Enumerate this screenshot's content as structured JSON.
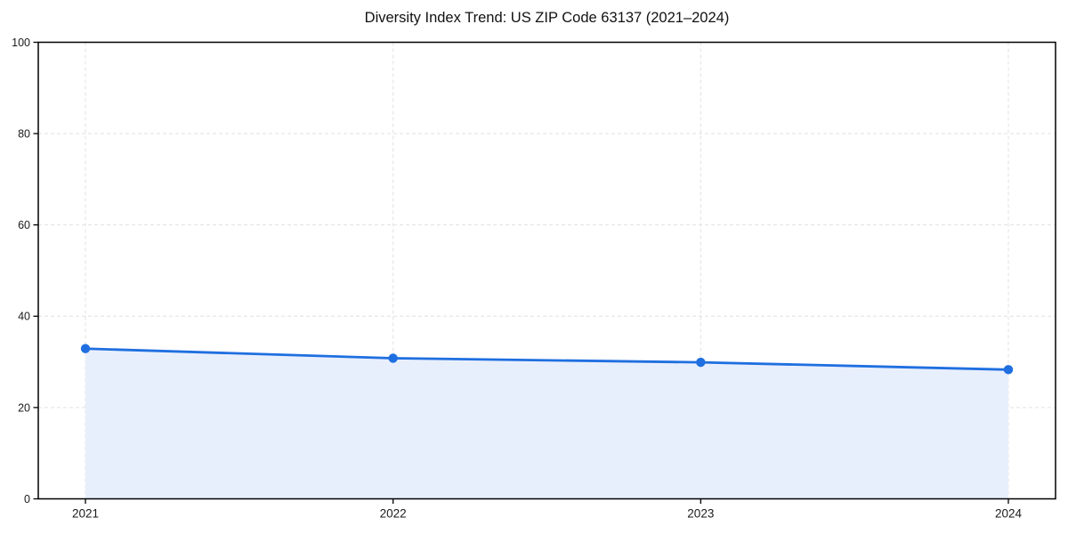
{
  "chart_data": {
    "type": "area",
    "title": "Diversity Index Trend: US ZIP Code 63137 (2021–2024)",
    "categories": [
      "2021",
      "2022",
      "2023",
      "2024"
    ],
    "values": [
      32.9,
      30.8,
      29.9,
      28.3
    ],
    "xlabel": "",
    "ylabel": "",
    "ylim": [
      0,
      100
    ],
    "yticks": [
      0,
      20,
      40,
      60,
      80,
      100
    ],
    "grid": "both-dashed",
    "legend": "none",
    "frame": "full-box",
    "colors": {
      "line": "#1f6fe0",
      "marker": "#1f6fe0",
      "area_fill": "#e8effc",
      "grid": "#e4e4e4",
      "spine": "#000000",
      "tick_text": "#1a1a1a"
    }
  }
}
